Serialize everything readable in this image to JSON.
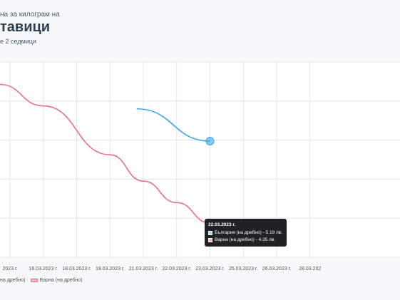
{
  "header": {
    "subtitle_top": "на за килограм на",
    "title": "тавици",
    "subtitle_bottom": "е 2 седмици"
  },
  "colors": {
    "series_1": "#3aa8e8",
    "series_2": "#ec6f8a"
  },
  "chart_data": {
    "type": "line",
    "x_ticks": [
      "2023 г.",
      "16.03.2023 г.",
      "18.03.2023 г.",
      "19.03.2023 г.",
      "21.03.2023 г.",
      "22.03.2023 г.",
      "23.03.2023 г.",
      "25.03.2023 г.",
      "26.03.2023 г.",
      "28.03.202"
    ],
    "series": [
      {
        "name": "България (на дребно)",
        "color": "#3aa8e8",
        "points": [
          {
            "x": 3.8,
            "y": 5.52
          },
          {
            "x": 6,
            "y": 5.19
          }
        ]
      },
      {
        "name": "Варна (на дребно)",
        "color": "#ec6f8a",
        "points": [
          {
            "x": -0.3,
            "y": 5.77
          },
          {
            "x": 1,
            "y": 5.55
          },
          {
            "x": 3,
            "y": 5.05
          },
          {
            "x": 4,
            "y": 4.78
          },
          {
            "x": 5,
            "y": 4.56
          },
          {
            "x": 6,
            "y": 4.35
          }
        ]
      }
    ],
    "highlight_x": 6,
    "y_range": [
      4.0,
      6.0
    ],
    "x_range": [
      -0.3,
      11.7
    ],
    "grid": true,
    "legend": {
      "position": "bottom-left",
      "labels": [
        "на дребно)",
        "Варна (на дребно)"
      ]
    },
    "tooltip": {
      "title": "22.03.2023 г.",
      "rows": [
        {
          "label": "България (на дребно) - 5.19 лв.",
          "color": "#a8d4f5"
        },
        {
          "label": "Варна (на дребно) - 4.35 лв.",
          "color": "#f8b4c3"
        }
      ]
    }
  }
}
